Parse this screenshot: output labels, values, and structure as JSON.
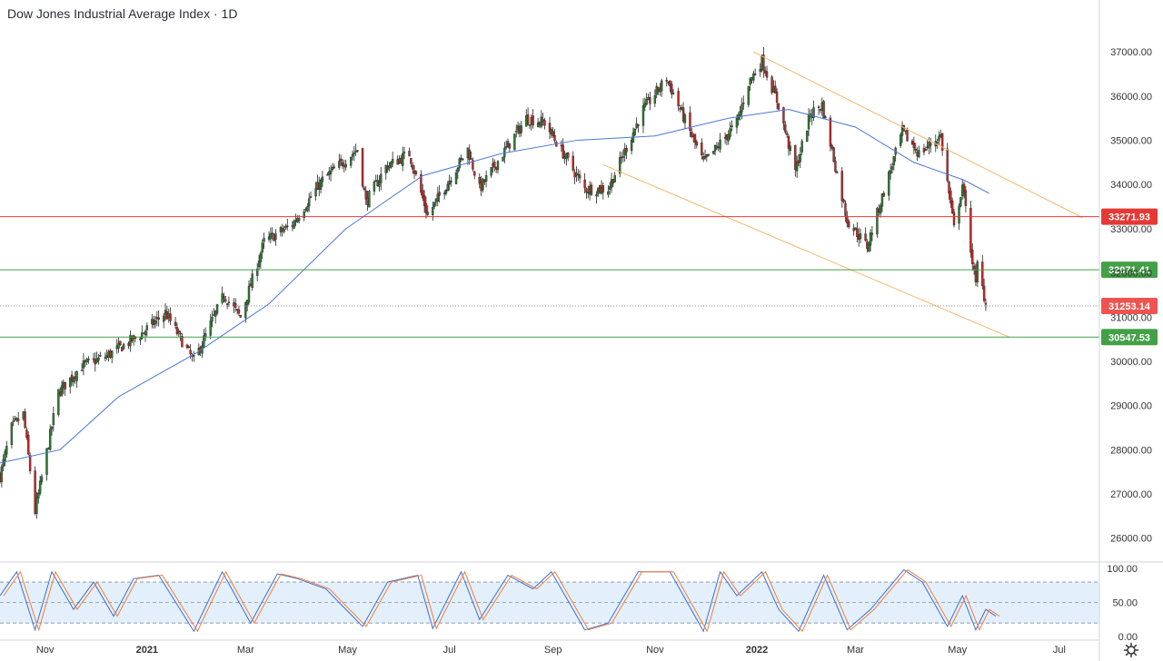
{
  "title": "Dow Jones Industrial Average Index · 1D",
  "colors": {
    "up": "#26a69a",
    "down": "#ef5350",
    "candle_up_body": "#2e7d32",
    "candle_down_body": "#c62828",
    "ma": "#4a78d6",
    "channel": "#f5b66a",
    "resistance": "#e53935",
    "support": "#43a047",
    "stoch_k": "#3d6fd8",
    "stoch_d": "#f57c3a",
    "stoch_band": "#e3f0fb"
  },
  "chart_data": [
    {
      "type": "candlestick",
      "ylim": [
        25500,
        37600
      ],
      "y_ticks": [
        "37000.00",
        "36000.00",
        "35000.00",
        "34000.00",
        "33000.00",
        "32000.00",
        "31000.00",
        "30000.00",
        "29000.00",
        "28000.00",
        "27000.00",
        "26000.00"
      ],
      "y_tick_values": [
        37000,
        36000,
        35000,
        34000,
        33000,
        32000,
        31000,
        30000,
        29000,
        28000,
        27000,
        26000
      ],
      "x_ticks": [
        "Nov",
        "2021",
        "Mar",
        "May",
        "Jul",
        "Sep",
        "Nov",
        "2022",
        "Mar",
        "May",
        "Jul"
      ],
      "x_tick_dates": [
        "2020-11-01",
        "2021-01-01",
        "2021-03-01",
        "2021-05-01",
        "2021-07-01",
        "2021-09-01",
        "2021-11-01",
        "2022-01-01",
        "2022-03-01",
        "2022-05-01",
        "2022-07-01"
      ],
      "x_range": [
        "2020-10-05",
        "2022-07-25"
      ],
      "last_price": 31253.14,
      "price_points": [
        [
          "2020-10-05",
          27400
        ],
        [
          "2020-10-12",
          28500
        ],
        [
          "2020-10-19",
          28800
        ],
        [
          "2020-10-26",
          26600
        ],
        [
          "2020-11-09",
          29300
        ],
        [
          "2020-11-23",
          29900
        ],
        [
          "2020-12-07",
          30100
        ],
        [
          "2020-12-28",
          30600
        ],
        [
          "2021-01-12",
          31100
        ],
        [
          "2021-01-29",
          30000
        ],
        [
          "2021-02-16",
          31500
        ],
        [
          "2021-02-26",
          31000
        ],
        [
          "2021-03-12",
          32700
        ],
        [
          "2021-03-29",
          33100
        ],
        [
          "2021-04-16",
          34100
        ],
        [
          "2021-05-07",
          34800
        ],
        [
          "2021-05-12",
          33600
        ],
        [
          "2021-05-24",
          34400
        ],
        [
          "2021-06-07",
          34700
        ],
        [
          "2021-06-18",
          33300
        ],
        [
          "2021-07-12",
          34800
        ],
        [
          "2021-07-19",
          33900
        ],
        [
          "2021-08-16",
          35500
        ],
        [
          "2021-08-27",
          35400
        ],
        [
          "2021-09-20",
          33900
        ],
        [
          "2021-10-04",
          33900
        ],
        [
          "2021-10-25",
          35700
        ],
        [
          "2021-11-08",
          36400
        ],
        [
          "2021-11-30",
          34500
        ],
        [
          "2021-12-03",
          34600
        ],
        [
          "2021-12-20",
          35400
        ],
        [
          "2021-12-27",
          36300
        ],
        [
          "2022-01-04",
          36800
        ],
        [
          "2022-01-14",
          35800
        ],
        [
          "2022-01-24",
          34300
        ],
        [
          "2022-02-02",
          35600
        ],
        [
          "2022-02-09",
          35800
        ],
        [
          "2022-02-24",
          33200
        ],
        [
          "2022-03-08",
          32600
        ],
        [
          "2022-03-29",
          35200
        ],
        [
          "2022-04-08",
          34700
        ],
        [
          "2022-04-21",
          35100
        ],
        [
          "2022-04-29",
          33000
        ],
        [
          "2022-05-04",
          34000
        ],
        [
          "2022-05-12",
          31700
        ],
        [
          "2022-05-13",
          32200
        ],
        [
          "2022-05-18",
          31300
        ]
      ],
      "moving_average": [
        [
          "2020-10-05",
          27700
        ],
        [
          "2020-11-10",
          28000
        ],
        [
          "2020-12-15",
          29200
        ],
        [
          "2021-01-31",
          30200
        ],
        [
          "2021-03-15",
          31300
        ],
        [
          "2021-04-30",
          33000
        ],
        [
          "2021-06-15",
          34200
        ],
        [
          "2021-08-01",
          34700
        ],
        [
          "2021-09-15",
          35000
        ],
        [
          "2021-11-01",
          35100
        ],
        [
          "2021-12-15",
          35500
        ],
        [
          "2022-01-20",
          35700
        ],
        [
          "2022-03-01",
          35300
        ],
        [
          "2022-04-05",
          34500
        ],
        [
          "2022-05-05",
          34100
        ],
        [
          "2022-05-20",
          33800
        ]
      ],
      "channel": {
        "upper": [
          [
            "2021-12-30",
            37000
          ],
          [
            "2022-07-15",
            33250
          ]
        ],
        "lower": [
          [
            "2021-10-01",
            34450
          ],
          [
            "2022-06-01",
            30550
          ]
        ]
      },
      "levels": [
        {
          "value": 33271.93,
          "label": "33271.93",
          "kind": "resistance"
        },
        {
          "value": 32071.41,
          "label": "32071.41",
          "kind": "support"
        },
        {
          "value": 30547.53,
          "label": "30547.53",
          "kind": "support"
        }
      ],
      "current_label": "31253.14"
    },
    {
      "type": "line",
      "indicator": "stochastic",
      "ylim": [
        -5,
        108
      ],
      "y_ticks": [
        "100.00",
        "50.00",
        "0.00"
      ],
      "y_tick_values": [
        100,
        50,
        0
      ],
      "band": [
        20,
        80
      ],
      "midline": 50,
      "k_points": [
        [
          "2020-10-05",
          60
        ],
        [
          "2020-10-15",
          95
        ],
        [
          "2020-10-26",
          10
        ],
        [
          "2020-11-05",
          95
        ],
        [
          "2020-11-18",
          40
        ],
        [
          "2020-11-30",
          80
        ],
        [
          "2020-12-12",
          30
        ],
        [
          "2020-12-24",
          85
        ],
        [
          "2021-01-08",
          90
        ],
        [
          "2021-01-29",
          8
        ],
        [
          "2021-02-15",
          95
        ],
        [
          "2021-03-04",
          20
        ],
        [
          "2021-03-20",
          92
        ],
        [
          "2021-04-01",
          85
        ],
        [
          "2021-04-18",
          70
        ],
        [
          "2021-05-10",
          15
        ],
        [
          "2021-05-25",
          80
        ],
        [
          "2021-06-12",
          90
        ],
        [
          "2021-06-21",
          12
        ],
        [
          "2021-07-08",
          95
        ],
        [
          "2021-07-19",
          25
        ],
        [
          "2021-08-05",
          90
        ],
        [
          "2021-08-20",
          70
        ],
        [
          "2021-08-31",
          95
        ],
        [
          "2021-09-20",
          10
        ],
        [
          "2021-10-04",
          20
        ],
        [
          "2021-10-22",
          95
        ],
        [
          "2021-11-10",
          95
        ],
        [
          "2021-11-30",
          8
        ],
        [
          "2021-12-10",
          95
        ],
        [
          "2021-12-20",
          60
        ],
        [
          "2022-01-04",
          95
        ],
        [
          "2022-01-14",
          40
        ],
        [
          "2022-01-26",
          8
        ],
        [
          "2022-02-10",
          90
        ],
        [
          "2022-02-24",
          10
        ],
        [
          "2022-03-10",
          40
        ],
        [
          "2022-03-30",
          98
        ],
        [
          "2022-04-10",
          80
        ],
        [
          "2022-04-25",
          15
        ],
        [
          "2022-05-04",
          60
        ],
        [
          "2022-05-12",
          10
        ],
        [
          "2022-05-18",
          40
        ],
        [
          "2022-05-24",
          30
        ]
      ]
    }
  ]
}
